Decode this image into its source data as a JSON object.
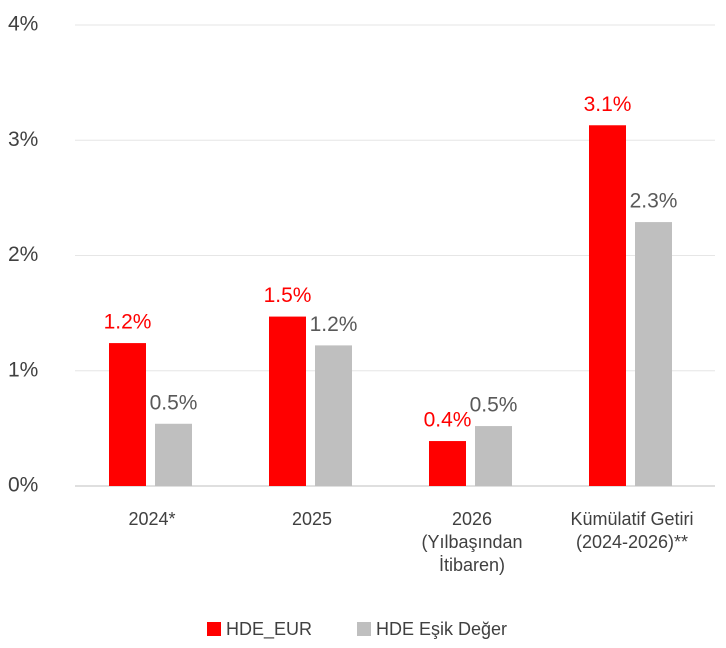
{
  "chart_data": {
    "type": "bar",
    "categories": [
      "2024*",
      "2025",
      "2026\n(Yılbaşından\nİtibaren)",
      "Kümülatif Getiri\n(2024-2026)**"
    ],
    "series": [
      {
        "name": "HDE_EUR",
        "color": "#ff0000",
        "values": [
          1.24,
          1.47,
          0.39,
          3.13
        ],
        "value_labels": [
          "1.2%",
          "1.5%",
          "0.4%",
          "3.1%"
        ]
      },
      {
        "name": "HDE Eşik Değer",
        "color": "#bfbfbf",
        "values": [
          0.54,
          1.22,
          0.52,
          2.29
        ],
        "value_labels": [
          "0.5%",
          "1.2%",
          "0.5%",
          "2.3%"
        ]
      }
    ],
    "ylim": [
      0,
      4
    ],
    "yticks": [
      {
        "value": 0,
        "label": "0%"
      },
      {
        "value": 1,
        "label": "1%"
      },
      {
        "value": 2,
        "label": "2%"
      },
      {
        "value": 3,
        "label": "3%"
      },
      {
        "value": 4,
        "label": "4%"
      }
    ],
    "grid": true,
    "legend": "bottom"
  }
}
